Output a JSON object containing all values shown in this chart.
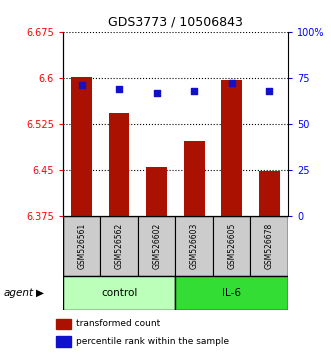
{
  "title": "GDS3773 / 10506843",
  "samples": [
    "GSM526561",
    "GSM526562",
    "GSM526602",
    "GSM526603",
    "GSM526605",
    "GSM526678"
  ],
  "bar_values": [
    6.601,
    6.543,
    6.455,
    6.497,
    6.596,
    6.449
  ],
  "percentile_values": [
    71,
    69,
    67,
    68,
    72,
    68
  ],
  "y_min": 6.375,
  "y_max": 6.675,
  "y_ticks": [
    6.375,
    6.45,
    6.525,
    6.6,
    6.675
  ],
  "y_right_ticks": [
    0,
    25,
    50,
    75,
    100
  ],
  "bar_color": "#aa1100",
  "dot_color": "#1111cc",
  "control_color": "#bbffbb",
  "il6_color": "#33dd33",
  "sample_box_color": "#cccccc",
  "agent_label": "agent",
  "control_label": "control",
  "il6_label": "IL-6",
  "legend_bar_label": "transformed count",
  "legend_dot_label": "percentile rank within the sample",
  "bar_width": 0.55
}
